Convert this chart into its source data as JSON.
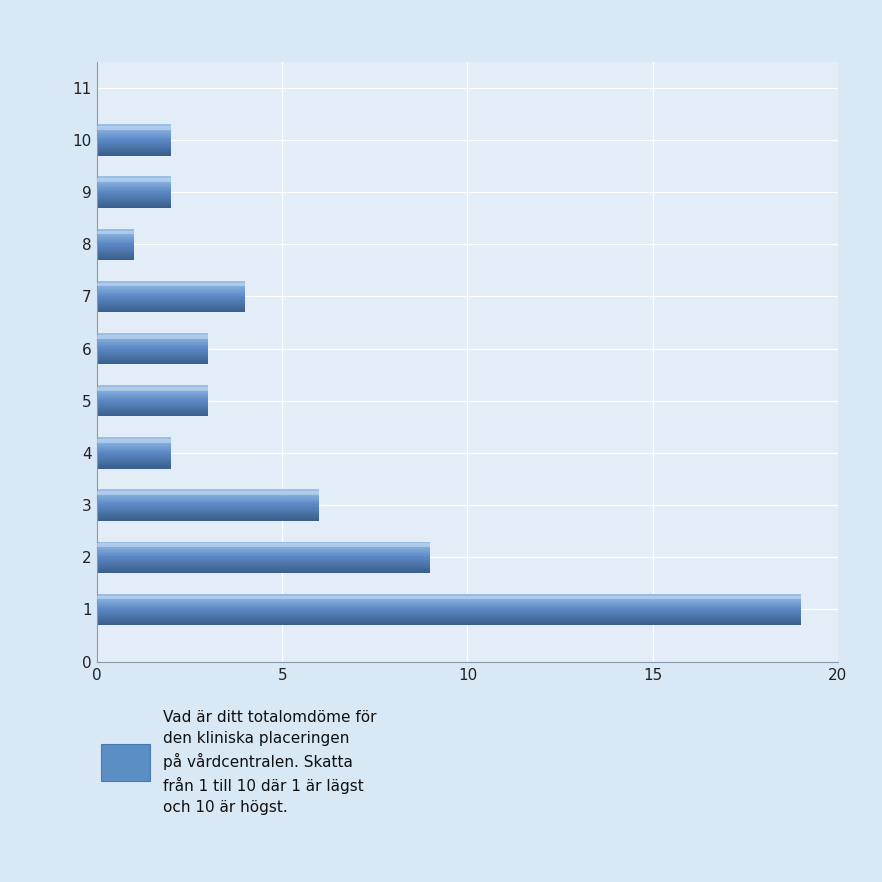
{
  "values": [
    19,
    9,
    6,
    2,
    3,
    3,
    4,
    1,
    2,
    2
  ],
  "bar_positions": [
    1,
    2,
    3,
    4,
    5,
    6,
    7,
    8,
    9,
    10
  ],
  "bar_color_top": "#8ab4e0",
  "bar_color_mid": "#5b87c5",
  "bar_color_bot": "#3a5f8a",
  "background_color": "#d9e8f5",
  "plot_bg_color": "#e3edf7",
  "grid_color": "#c8d8ea",
  "xlim": [
    0,
    20
  ],
  "ylim": [
    0,
    11.5
  ],
  "yticks": [
    0,
    1,
    2,
    3,
    4,
    5,
    6,
    7,
    8,
    9,
    10,
    11
  ],
  "xticks": [
    0,
    5,
    10,
    15,
    20
  ],
  "legend_text_line1": "Vad är ditt totalom döme för",
  "legend_text_line2": "den kliniska placeringen",
  "legend_text_line3": "på vårdcentralen. Skatta",
  "legend_text_line4": "från 1 till 10 där 1 är lägst",
  "legend_text_line5": "och 10 är högst.",
  "legend_rect_color": "#5b8ec5",
  "bar_height": 0.6,
  "font_size": 11
}
